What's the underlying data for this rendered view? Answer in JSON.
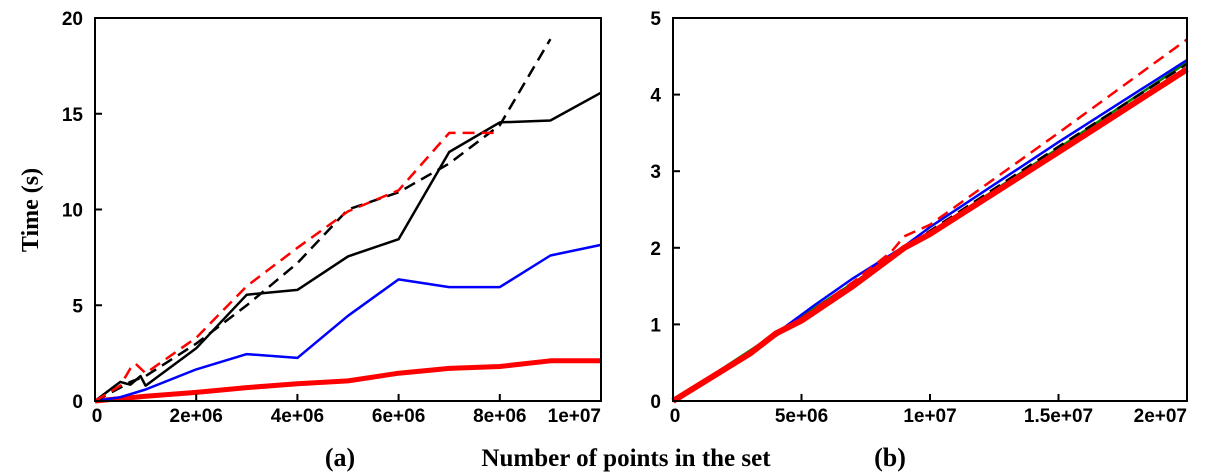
{
  "ylabel": "Time (s)",
  "xlabel": "Number of points in the set",
  "chart_data": [
    {
      "type": "line",
      "panel_label": "(a)",
      "xlim": [
        0,
        10000000
      ],
      "ylim": [
        0,
        20
      ],
      "x_ticks": [
        0,
        2000000,
        4000000,
        6000000,
        8000000,
        10000000
      ],
      "x_tick_labels": [
        "0",
        "2e+06",
        "4e+06",
        "6e+06",
        "8e+06",
        "1e+07"
      ],
      "y_ticks": [
        0,
        5,
        10,
        15,
        20
      ],
      "y_tick_labels": [
        "0",
        "5",
        "10",
        "15",
        "20"
      ],
      "grid": false,
      "series": [
        {
          "color": "#ff0000",
          "dash": "none",
          "width": 5,
          "x": [
            0,
            1000000,
            2000000,
            3000000,
            4000000,
            5000000,
            6000000,
            7000000,
            8000000,
            9000000,
            10000000
          ],
          "y": [
            0,
            0.25,
            0.45,
            0.7,
            0.9,
            1.05,
            1.45,
            1.7,
            1.8,
            2.1,
            2.1
          ]
        },
        {
          "color": "#0000ff",
          "dash": "none",
          "width": 2.5,
          "x": [
            0,
            500000,
            1000000,
            2000000,
            3000000,
            4000000,
            5000000,
            6000000,
            7000000,
            8000000,
            9000000,
            10000000
          ],
          "y": [
            0,
            0.2,
            0.6,
            1.65,
            2.45,
            2.25,
            4.45,
            6.35,
            5.95,
            5.95,
            7.6,
            8.15
          ]
        },
        {
          "color": "#000000",
          "dash": "none",
          "width": 2.5,
          "x": [
            0,
            300000,
            500000,
            700000,
            900000,
            1000000,
            2000000,
            3000000,
            4000000,
            5000000,
            6000000,
            7000000,
            8000000,
            9000000,
            10000000
          ],
          "y": [
            0,
            0.6,
            1.0,
            0.85,
            1.3,
            0.8,
            2.75,
            5.55,
            5.8,
            7.55,
            8.45,
            13.0,
            14.55,
            14.65,
            16.1
          ]
        },
        {
          "color": "#000000",
          "dash": "12,7",
          "width": 2.5,
          "x": [
            0,
            500000,
            700000,
            1000000,
            2000000,
            3000000,
            4000000,
            5000000,
            6000000,
            7000000,
            8000000,
            9000000
          ],
          "y": [
            0,
            0.7,
            1.0,
            1.3,
            3.0,
            5.0,
            7.2,
            10.0,
            10.9,
            12.4,
            14.4,
            18.9
          ]
        },
        {
          "color": "#ff0000",
          "dash": "12,7",
          "width": 2.5,
          "x": [
            0,
            500000,
            700000,
            800000,
            1000000,
            2000000,
            3000000,
            4000000,
            5000000,
            6000000,
            7000000,
            8000000
          ],
          "y": [
            0,
            0.8,
            1.7,
            1.95,
            1.45,
            3.3,
            6.0,
            8.0,
            9.9,
            11.0,
            14.0,
            14.0
          ]
        }
      ]
    },
    {
      "type": "line",
      "panel_label": "(b)",
      "xlim": [
        0,
        20000000
      ],
      "ylim": [
        0,
        5
      ],
      "x_ticks": [
        0,
        5000000,
        10000000,
        15000000,
        20000000
      ],
      "x_tick_labels": [
        "0",
        "5e+06",
        "1e+07",
        "1.5e+07",
        "2e+07"
      ],
      "y_ticks": [
        0,
        1,
        2,
        3,
        4,
        5
      ],
      "y_tick_labels": [
        "0",
        "1",
        "2",
        "3",
        "4",
        "5"
      ],
      "grid": false,
      "series": [
        {
          "color": "#008000",
          "dash": "none",
          "width": 2.5,
          "x": [
            0,
            5000000,
            10000000,
            15000000,
            20000000
          ],
          "y": [
            0,
            1.1,
            2.2,
            3.3,
            4.42
          ]
        },
        {
          "color": "#0000ff",
          "dash": "none",
          "width": 2.5,
          "x": [
            0,
            3000000,
            4000000,
            5500000,
            7000000,
            9000000,
            10000000,
            15000000,
            20000000
          ],
          "y": [
            0,
            0.62,
            0.88,
            1.25,
            1.6,
            2.02,
            2.27,
            3.38,
            4.45
          ]
        },
        {
          "color": "#000000",
          "dash": "12,7",
          "width": 2.5,
          "x": [
            0,
            3000000,
            5000000,
            7000000,
            9000000,
            10000000,
            15000000,
            20000000
          ],
          "y": [
            0,
            0.62,
            1.08,
            1.55,
            2.0,
            2.22,
            3.32,
            4.4
          ]
        },
        {
          "color": "#ff0000",
          "dash": "12,7",
          "width": 2.5,
          "x": [
            0,
            3000000,
            4000000,
            5000000,
            7000000,
            8500000,
            9000000,
            10000000,
            15000000,
            20000000
          ],
          "y": [
            0,
            0.62,
            0.88,
            1.08,
            1.55,
            1.95,
            2.15,
            2.3,
            3.5,
            4.72
          ]
        },
        {
          "color": "#ff0000",
          "dash": "none",
          "width": 6,
          "x": [
            0,
            3000000,
            4000000,
            5000000,
            7000000,
            9000000,
            10000000,
            15000000,
            20000000
          ],
          "y": [
            0,
            0.62,
            0.88,
            1.05,
            1.5,
            2.0,
            2.18,
            3.25,
            4.33
          ]
        }
      ]
    }
  ]
}
